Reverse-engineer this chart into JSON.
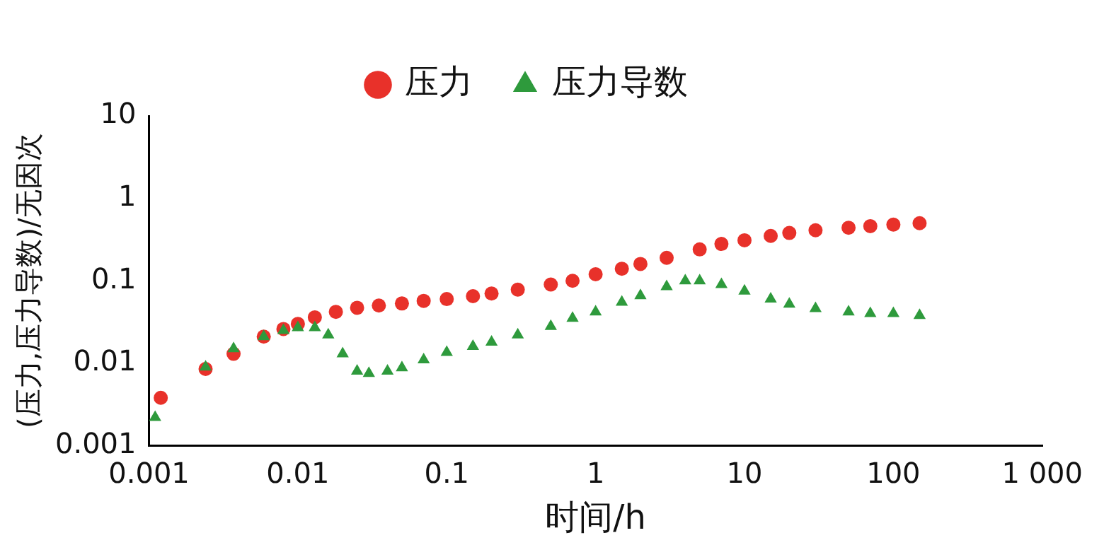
{
  "chart_data": {
    "type": "scatter",
    "xlabel": "时间/h",
    "ylabel": "(压力,压力导数)/无因次",
    "log": "xy",
    "xlim": [
      0.001,
      1000
    ],
    "xticks": [
      0.001,
      0.01,
      0.1,
      1,
      10,
      100,
      {
        "value": 1000,
        "label": "1 000"
      }
    ],
    "ylim": [
      0.001,
      10
    ],
    "yticks": [
      0.001,
      0.01,
      0.1,
      1,
      10
    ],
    "grid": false,
    "legend": "top",
    "series": [
      {
        "name": "压力",
        "color": "#e8312a",
        "marker": "circle",
        "x": [
          0.0012,
          0.0024,
          0.0037,
          0.0059,
          0.008,
          0.01,
          0.013,
          0.018,
          0.025,
          0.035,
          0.05,
          0.07,
          0.1,
          0.15,
          0.2,
          0.3,
          0.5,
          0.7,
          1,
          1.5,
          2,
          3,
          5,
          7,
          10,
          15,
          20,
          30,
          50,
          70,
          100,
          150
        ],
        "values": [
          0.0038,
          0.0085,
          0.013,
          0.021,
          0.026,
          0.03,
          0.036,
          0.042,
          0.047,
          0.05,
          0.053,
          0.057,
          0.06,
          0.065,
          0.07,
          0.078,
          0.09,
          0.1,
          0.12,
          0.14,
          0.16,
          0.19,
          0.24,
          0.28,
          0.31,
          0.35,
          0.38,
          0.41,
          0.44,
          0.46,
          0.48,
          0.5
        ]
      },
      {
        "name": "压力导数",
        "color": "#2e9a3c",
        "marker": "triangle",
        "x": [
          0.0011,
          0.0024,
          0.0037,
          0.0059,
          0.008,
          0.01,
          0.013,
          0.016,
          0.02,
          0.025,
          0.03,
          0.04,
          0.05,
          0.07,
          0.1,
          0.15,
          0.2,
          0.3,
          0.5,
          0.7,
          1,
          1.5,
          2,
          3,
          4,
          5,
          7,
          10,
          15,
          20,
          30,
          50,
          70,
          100,
          150
        ],
        "values": [
          0.0022,
          0.009,
          0.015,
          0.021,
          0.025,
          0.027,
          0.027,
          0.022,
          0.013,
          0.008,
          0.0075,
          0.008,
          0.0088,
          0.011,
          0.0135,
          0.016,
          0.018,
          0.022,
          0.028,
          0.035,
          0.042,
          0.055,
          0.066,
          0.085,
          0.1,
          0.1,
          0.09,
          0.075,
          0.06,
          0.052,
          0.046,
          0.042,
          0.04,
          0.04,
          0.038
        ]
      }
    ]
  }
}
